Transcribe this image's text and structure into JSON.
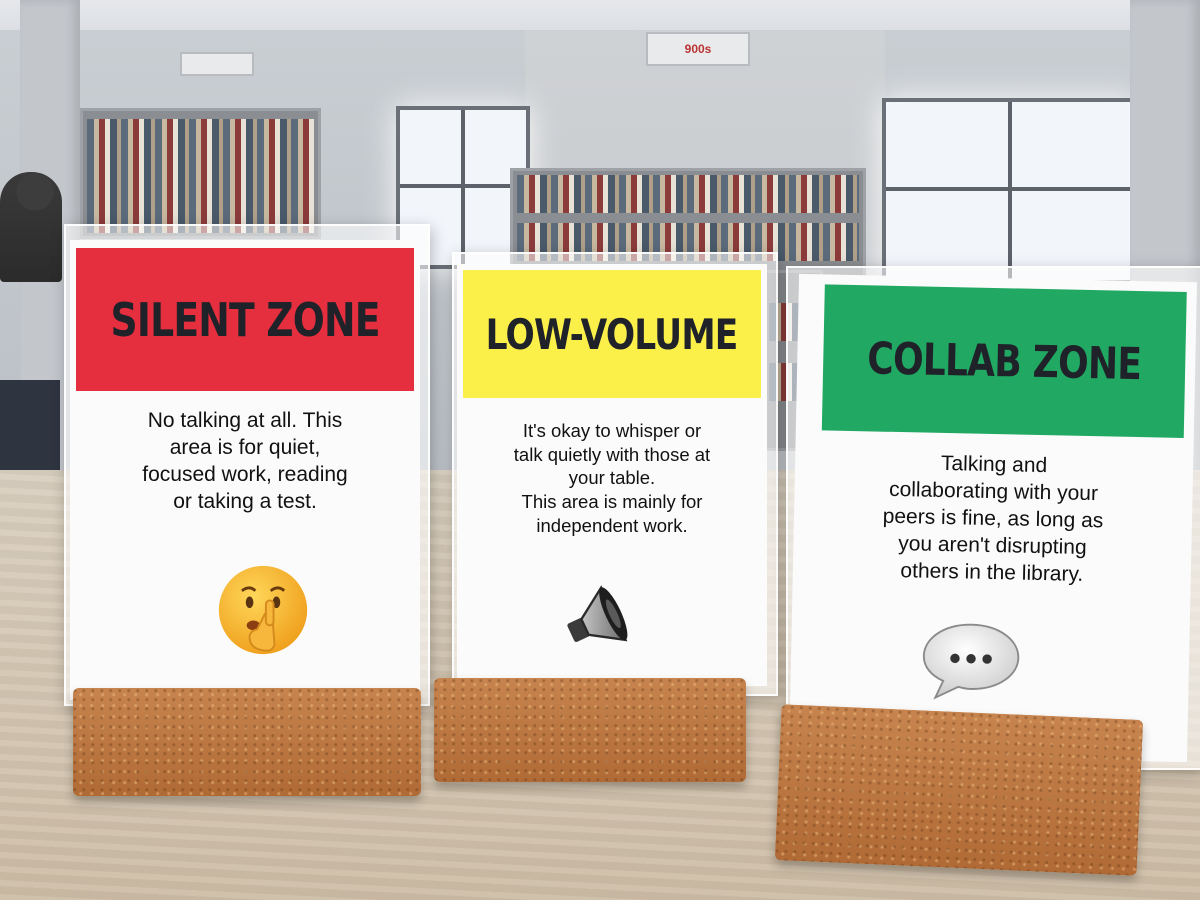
{
  "signs": [
    {
      "title": "SILENT ZONE",
      "header_color": "#e52e3e",
      "description": [
        "No talking at all.  This",
        "area is for quiet,",
        "focused work, reading",
        "or taking a test."
      ],
      "icon": "shushing-face-icon"
    },
    {
      "title": "LOW-VOLUME",
      "header_color": "#fbef4a",
      "description": [
        "It's okay to whisper or",
        "talk quietly with those at",
        "your table.",
        "This area is mainly for",
        "independent work."
      ],
      "icon": "speaker-icon"
    },
    {
      "title": "COLLAB ZONE",
      "header_color": "#21a862",
      "description": [
        "Talking and",
        "collaborating with your",
        "peers is fine, as long as",
        "you aren't disrupting",
        "others in the library."
      ],
      "icon": "speech-bubble-icon"
    }
  ],
  "background_signs": [
    "900s"
  ]
}
